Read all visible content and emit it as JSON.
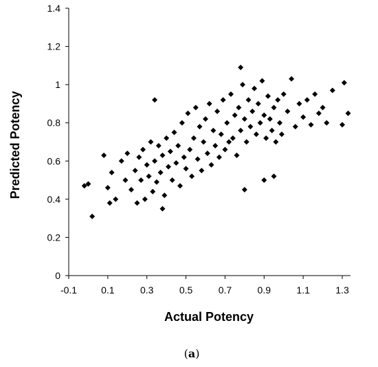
{
  "chart_data": {
    "type": "scatter",
    "title": "",
    "xlabel": "Actual Potency",
    "ylabel": "Predicted Potency",
    "xlim": [
      -0.1,
      1.35
    ],
    "ylim": [
      0,
      1.4
    ],
    "x_ticks": [
      "-0.1",
      "0.1",
      "0.3",
      "0.5",
      "0.7",
      "0.9",
      "1.1",
      "1.3"
    ],
    "y_ticks": [
      "0",
      "0.2",
      "0.4",
      "0.6",
      "0.8",
      "1",
      "1.2",
      "1.4"
    ],
    "grid": false,
    "legend": "none",
    "marker": "diamond",
    "marker_color": "#000000",
    "series": [
      {
        "x": [
          -0.02,
          0.0,
          0.02,
          0.08,
          0.1,
          0.12,
          0.11,
          0.14,
          0.17,
          0.19,
          0.2,
          0.22,
          0.24,
          0.25,
          0.26,
          0.27,
          0.28,
          0.29,
          0.3,
          0.31,
          0.32,
          0.33,
          0.34,
          0.35,
          0.36,
          0.37,
          0.38,
          0.39,
          0.4,
          0.41,
          0.42,
          0.43,
          0.44,
          0.45,
          0.46,
          0.47,
          0.48,
          0.49,
          0.5,
          0.51,
          0.52,
          0.53,
          0.54,
          0.55,
          0.56,
          0.57,
          0.58,
          0.59,
          0.6,
          0.61,
          0.62,
          0.63,
          0.64,
          0.65,
          0.66,
          0.67,
          0.68,
          0.69,
          0.7,
          0.71,
          0.72,
          0.73,
          0.74,
          0.75,
          0.76,
          0.77,
          0.78,
          0.79,
          0.8,
          0.81,
          0.82,
          0.83,
          0.84,
          0.85,
          0.86,
          0.87,
          0.88,
          0.89,
          0.9,
          0.91,
          0.92,
          0.93,
          0.94,
          0.95,
          0.96,
          0.97,
          0.98,
          0.99,
          1.0,
          1.02,
          1.04,
          1.06,
          1.08,
          1.1,
          1.12,
          1.14,
          1.16,
          1.18,
          1.2,
          1.22,
          1.25,
          1.3,
          1.31,
          1.33,
          0.34,
          0.38,
          0.78,
          0.8,
          0.9,
          0.95
        ],
        "y": [
          0.47,
          0.48,
          0.31,
          0.63,
          0.46,
          0.54,
          0.38,
          0.4,
          0.6,
          0.5,
          0.64,
          0.45,
          0.55,
          0.38,
          0.62,
          0.5,
          0.66,
          0.4,
          0.58,
          0.52,
          0.7,
          0.44,
          0.6,
          0.49,
          0.68,
          0.54,
          0.63,
          0.42,
          0.72,
          0.57,
          0.65,
          0.5,
          0.75,
          0.59,
          0.68,
          0.47,
          0.8,
          0.62,
          0.56,
          0.85,
          0.66,
          0.52,
          0.72,
          0.88,
          0.61,
          0.78,
          0.55,
          0.7,
          0.82,
          0.64,
          0.9,
          0.58,
          0.76,
          0.68,
          0.86,
          0.62,
          0.74,
          0.92,
          0.66,
          0.8,
          0.7,
          0.95,
          0.72,
          0.84,
          0.63,
          0.88,
          0.76,
          1.0,
          0.82,
          0.7,
          0.92,
          0.78,
          0.86,
          0.98,
          0.74,
          0.9,
          0.8,
          1.02,
          0.84,
          0.72,
          0.94,
          0.82,
          0.76,
          0.88,
          0.7,
          0.92,
          0.8,
          0.74,
          0.95,
          0.86,
          1.03,
          0.78,
          0.9,
          0.83,
          0.92,
          0.79,
          0.95,
          0.85,
          0.88,
          0.8,
          0.97,
          0.79,
          1.01,
          0.85,
          0.92,
          0.35,
          1.09,
          0.45,
          0.5,
          0.52
        ]
      }
    ]
  },
  "caption": {
    "open": "(",
    "letter": "a",
    "close": ")"
  }
}
